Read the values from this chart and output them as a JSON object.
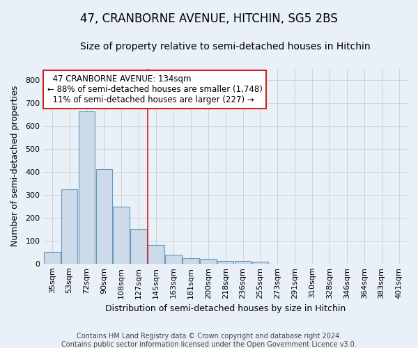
{
  "title": "47, CRANBORNE AVENUE, HITCHIN, SG5 2BS",
  "subtitle": "Size of property relative to semi-detached houses in Hitchin",
  "xlabel": "Distribution of semi-detached houses by size in Hitchin",
  "ylabel": "Number of semi-detached properties",
  "categories": [
    "35sqm",
    "53sqm",
    "72sqm",
    "90sqm",
    "108sqm",
    "127sqm",
    "145sqm",
    "163sqm",
    "181sqm",
    "200sqm",
    "218sqm",
    "236sqm",
    "255sqm",
    "273sqm",
    "291sqm",
    "310sqm",
    "328sqm",
    "346sqm",
    "364sqm",
    "383sqm",
    "401sqm"
  ],
  "values": [
    50,
    323,
    663,
    413,
    248,
    150,
    80,
    38,
    23,
    22,
    13,
    13,
    10,
    0,
    0,
    0,
    0,
    0,
    0,
    0,
    0
  ],
  "bar_color": "#ccdaea",
  "bar_edge_color": "#6699bb",
  "vline_color": "#cc2222",
  "vline_index": 5.5,
  "annotation_text": "  47 CRANBORNE AVENUE: 134sqm\n← 88% of semi-detached houses are smaller (1,748)\n  11% of semi-detached houses are larger (227) →",
  "annotation_box_color": "#ffffff",
  "annotation_box_edge_color": "#cc2222",
  "ylim": [
    0,
    850
  ],
  "yticks": [
    0,
    100,
    200,
    300,
    400,
    500,
    600,
    700,
    800
  ],
  "grid_color": "#cccccc",
  "background_color": "#eaf0f8",
  "axes_background_color": "#eaf0f8",
  "footer_line1": "Contains HM Land Registry data © Crown copyright and database right 2024.",
  "footer_line2": "Contains public sector information licensed under the Open Government Licence v3.0.",
  "title_fontsize": 12,
  "subtitle_fontsize": 10,
  "label_fontsize": 9,
  "tick_fontsize": 8,
  "annotation_fontsize": 8.5
}
